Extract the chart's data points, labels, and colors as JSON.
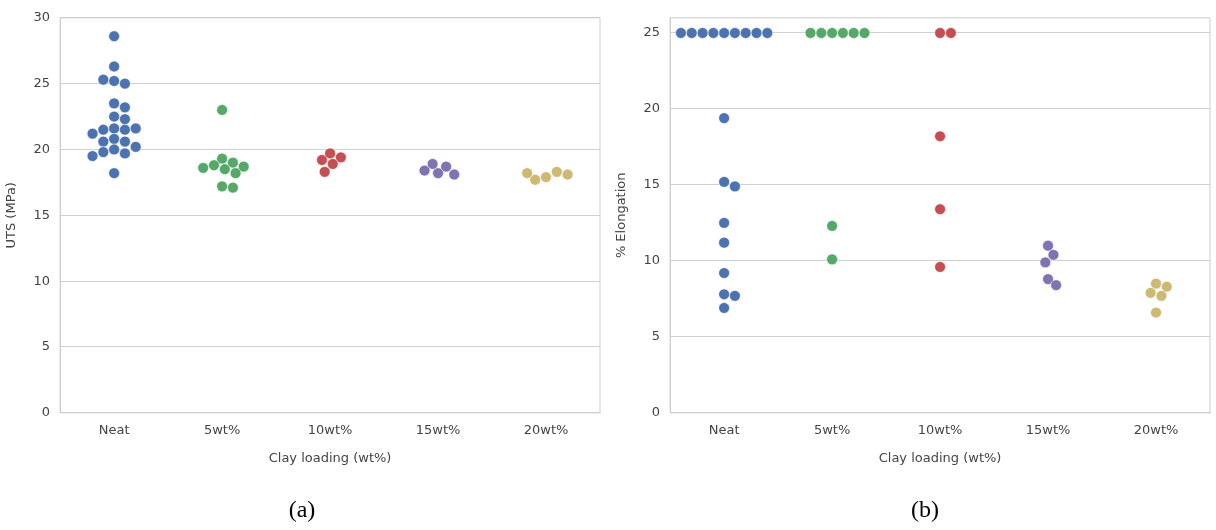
{
  "chart_data": [
    {
      "type": "scatter",
      "xlabel": "Clay loading (wt%)",
      "ylabel": "UTS (MPa)",
      "categories": [
        "Neat",
        "5wt%",
        "10wt%",
        "15wt%",
        "20wt%"
      ],
      "ylim": [
        0,
        30
      ],
      "yticks": [
        0,
        5,
        10,
        15,
        20,
        25,
        30
      ],
      "grid": "y",
      "legend": false,
      "marker": "circle",
      "annotations": [
        "(a)"
      ],
      "series": [
        {
          "color": "#4c72b0",
          "x": [
            "Neat",
            "Neat",
            "Neat",
            "Neat",
            "Neat",
            "Neat",
            "Neat",
            "Neat",
            "Neat",
            "Neat",
            "Neat",
            "Neat",
            "Neat",
            "Neat",
            "Neat",
            "Neat",
            "Neat",
            "Neat",
            "Neat",
            "Neat",
            "Neat",
            "Neat",
            "Neat"
          ],
          "values": [
            28.6,
            26.3,
            25.2,
            25.0,
            25.3,
            23.5,
            23.2,
            22.5,
            22.3,
            21.6,
            21.5,
            21.5,
            21.6,
            21.2,
            20.8,
            20.6,
            20.6,
            20.2,
            20.0,
            19.7,
            19.8,
            19.5,
            18.2
          ]
        },
        {
          "color": "#55a868",
          "x": [
            "5wt%",
            "5wt%",
            "5wt%",
            "5wt%",
            "5wt%",
            "5wt%",
            "5wt%",
            "5wt%",
            "5wt%",
            "5wt%"
          ],
          "values": [
            23.0,
            19.3,
            19.0,
            18.8,
            18.6,
            18.5,
            18.7,
            18.2,
            17.2,
            17.1
          ]
        },
        {
          "color": "#c44e52",
          "x": [
            "10wt%",
            "10wt%",
            "10wt%",
            "10wt%",
            "10wt%"
          ],
          "values": [
            19.7,
            19.4,
            19.2,
            18.9,
            18.3
          ]
        },
        {
          "color": "#8172b2",
          "x": [
            "15wt%",
            "15wt%",
            "15wt%",
            "15wt%",
            "15wt%"
          ],
          "values": [
            18.2,
            18.7,
            18.9,
            18.4,
            18.1
          ]
        },
        {
          "color": "#ccb974",
          "x": [
            "20wt%",
            "20wt%",
            "20wt%",
            "20wt%",
            "20wt%"
          ],
          "values": [
            17.9,
            18.3,
            17.7,
            18.1,
            18.2
          ]
        }
      ]
    },
    {
      "type": "scatter",
      "xlabel": "Clay loading (wt%)",
      "ylabel": "% Elongation",
      "categories": [
        "Neat",
        "5wt%",
        "10wt%",
        "15wt%",
        "20wt%"
      ],
      "ylim": [
        0,
        26
      ],
      "yticks": [
        0,
        5,
        10,
        15,
        20,
        25
      ],
      "grid": "y",
      "legend": false,
      "marker": "circle",
      "annotations": [
        "(b)"
      ],
      "series": [
        {
          "color": "#4c72b0",
          "x": [
            "Neat",
            "Neat",
            "Neat",
            "Neat",
            "Neat",
            "Neat",
            "Neat",
            "Neat",
            "Neat",
            "Neat",
            "Neat",
            "Neat",
            "Neat",
            "Neat",
            "Neat",
            "Neat",
            "Neat",
            "Neat"
          ],
          "values": [
            25,
            25,
            25,
            25,
            25,
            25,
            25,
            25,
            25,
            19.4,
            15.2,
            14.9,
            12.5,
            11.2,
            9.2,
            7.8,
            7.7,
            6.9
          ]
        },
        {
          "color": "#55a868",
          "x": [
            "5wt%",
            "5wt%",
            "5wt%",
            "5wt%",
            "5wt%",
            "5wt%",
            "5wt%",
            "5wt%"
          ],
          "values": [
            25,
            25,
            25,
            25,
            25,
            25,
            12.3,
            10.1
          ]
        },
        {
          "color": "#c44e52",
          "x": [
            "10wt%",
            "10wt%",
            "10wt%",
            "10wt%",
            "10wt%"
          ],
          "values": [
            25,
            25,
            18.2,
            13.4,
            9.6
          ]
        },
        {
          "color": "#8172b2",
          "x": [
            "15wt%",
            "15wt%",
            "15wt%",
            "15wt%",
            "15wt%"
          ],
          "values": [
            11.0,
            10.4,
            9.9,
            8.8,
            8.4
          ]
        },
        {
          "color": "#ccb974",
          "x": [
            "20wt%",
            "20wt%",
            "20wt%",
            "20wt%",
            "20wt%"
          ],
          "values": [
            8.5,
            8.3,
            7.9,
            7.7,
            6.6
          ]
        }
      ]
    }
  ]
}
